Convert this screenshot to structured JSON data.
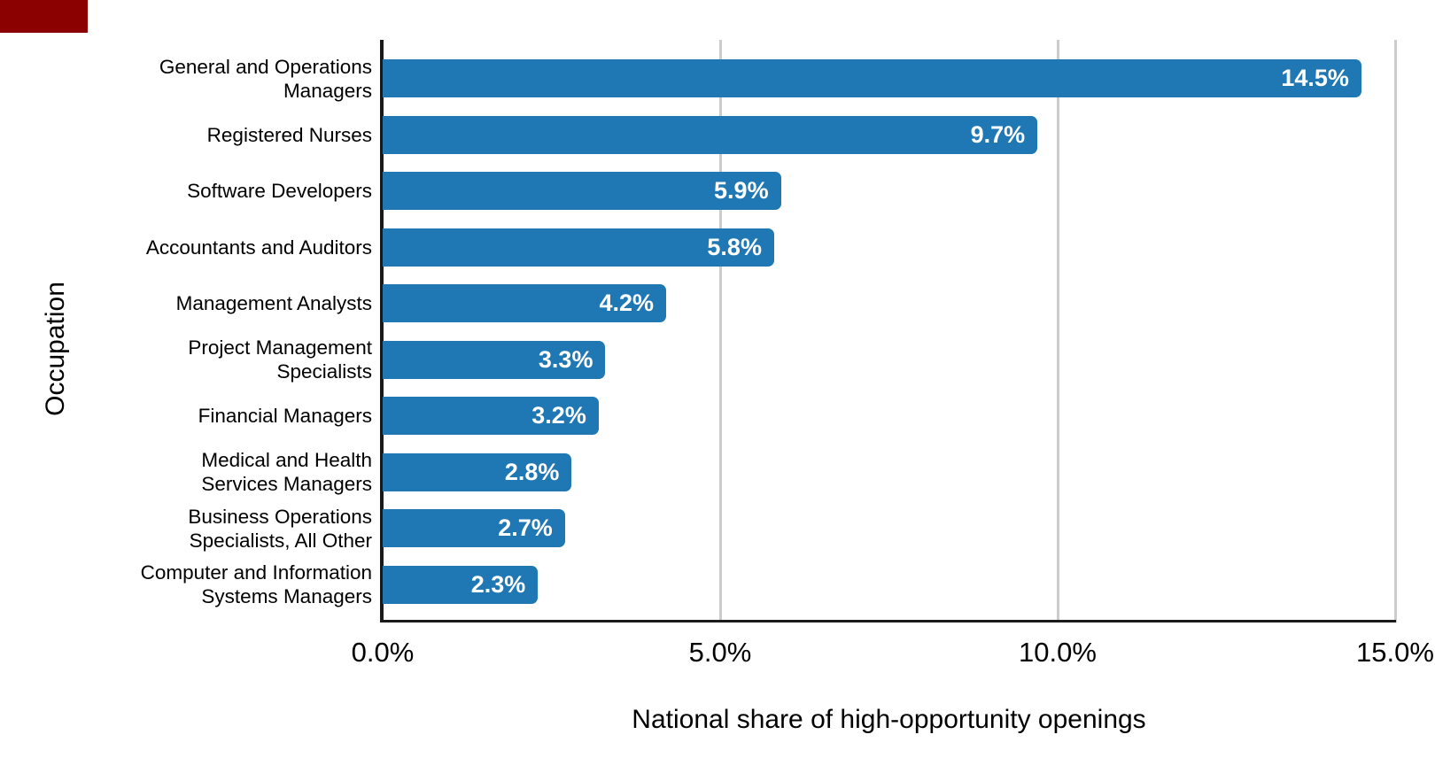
{
  "page": {
    "background": "#ffffff",
    "corner_patch_color": "#8b0000"
  },
  "chart_data": {
    "type": "bar",
    "orientation": "horizontal",
    "title": "",
    "xlabel": "National share of high-opportunity openings",
    "ylabel": "Occupation",
    "categories": [
      "General and Operations Managers",
      "Registered Nurses",
      "Software Developers",
      "Accountants and Auditors",
      "Management Analysts",
      "Project Management Specialists",
      "Financial Managers",
      "Medical and Health Services Managers",
      "Business Operations Specialists, All Other",
      "Computer and Information Systems Managers"
    ],
    "category_label_lines": [
      [
        "General and Operations",
        "Managers"
      ],
      [
        "Registered Nurses"
      ],
      [
        "Software Developers"
      ],
      [
        "Accountants and Auditors"
      ],
      [
        "Management Analysts"
      ],
      [
        "Project Management",
        "Specialists"
      ],
      [
        "Financial Managers"
      ],
      [
        "Medical and Health",
        "Services Managers"
      ],
      [
        "Business Operations",
        "Specialists, All Other"
      ],
      [
        "Computer and Information",
        "Systems Managers"
      ]
    ],
    "values": [
      14.5,
      9.7,
      5.9,
      5.8,
      4.2,
      3.3,
      3.2,
      2.8,
      2.7,
      2.3
    ],
    "value_labels": [
      "14.5%",
      "9.7%",
      "5.9%",
      "5.8%",
      "4.2%",
      "3.3%",
      "3.2%",
      "2.8%",
      "2.7%",
      "2.3%"
    ],
    "xlim": [
      0,
      15
    ],
    "x_ticks": [
      "0.0%",
      "5.0%",
      "10.0%",
      "15.0%"
    ],
    "x_tick_values": [
      0,
      5,
      10,
      15
    ],
    "grid": "vertical-only",
    "gridline_values": [
      5,
      10,
      15
    ],
    "legend": "none",
    "bar_color": "#1f77b4",
    "value_label_color": "#ffffff",
    "axis_line_color": "#1a1a1a",
    "gridline_color": "#cccccc",
    "text_color": "#000000"
  }
}
